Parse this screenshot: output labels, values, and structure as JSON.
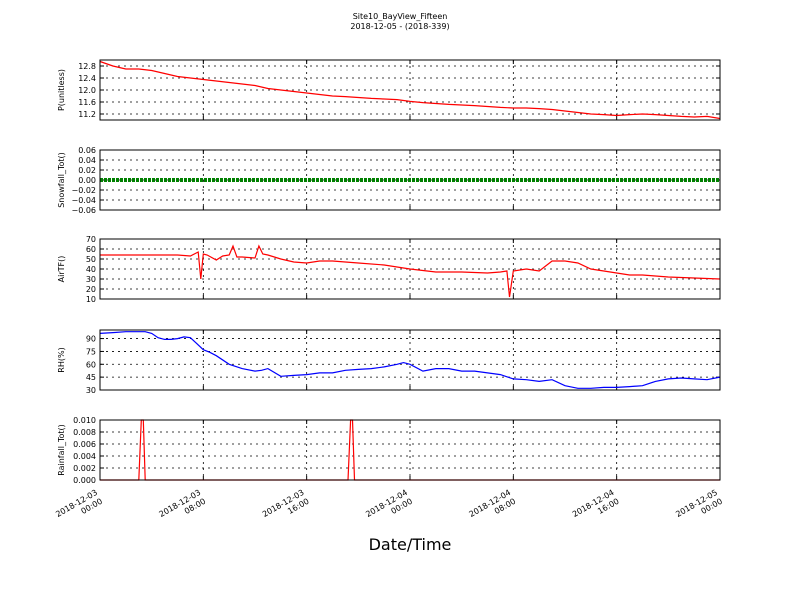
{
  "figure": {
    "title_line1": "Site10_BayView_Fifteen",
    "title_line2": "2018-12-05 - (2018-339)",
    "xlabel": "Date/Time"
  },
  "chart_data": [
    {
      "type": "line",
      "ylabel": "P(unitless)",
      "ylim": [
        11.0,
        13.0
      ],
      "yticks": [
        "11.2",
        "11.6",
        "12.0",
        "12.4",
        "12.8"
      ],
      "ytick_values": [
        11.2,
        11.6,
        12.0,
        12.4,
        12.8
      ],
      "x": [
        0,
        1,
        2,
        3,
        4,
        5,
        6,
        7,
        8,
        9,
        10,
        11,
        12,
        13,
        14,
        15,
        16,
        17,
        18,
        19,
        20,
        21,
        22,
        23,
        24,
        25,
        26,
        27,
        28,
        29,
        30,
        31,
        32,
        33,
        34,
        35,
        36,
        37,
        38,
        39,
        40,
        41,
        42,
        43,
        44,
        45,
        46,
        47,
        48
      ],
      "series": [
        {
          "color": "#ff0000",
          "values": [
            12.95,
            12.8,
            12.7,
            12.7,
            12.65,
            12.55,
            12.45,
            12.4,
            12.35,
            12.3,
            12.25,
            12.2,
            12.15,
            12.05,
            12.0,
            11.95,
            11.9,
            11.85,
            11.8,
            11.78,
            11.75,
            11.72,
            11.7,
            11.68,
            11.62,
            11.58,
            11.55,
            11.52,
            11.5,
            11.48,
            11.45,
            11.42,
            11.4,
            11.4,
            11.38,
            11.35,
            11.3,
            11.25,
            11.2,
            11.18,
            11.15,
            11.18,
            11.2,
            11.18,
            11.15,
            11.12,
            11.1,
            11.12,
            11.05
          ]
        }
      ]
    },
    {
      "type": "line",
      "ylabel": "Snowfall_Tot()",
      "ylim": [
        -0.06,
        0.06
      ],
      "yticks": [
        "−0.06",
        "−0.04",
        "−0.02",
        "0.00",
        "0.02",
        "0.04",
        "0.06"
      ],
      "ytick_values": [
        -0.06,
        -0.04,
        -0.02,
        0.0,
        0.02,
        0.04,
        0.06
      ],
      "x": [
        0,
        48
      ],
      "series": [
        {
          "color": "#008000",
          "values": [
            0.0,
            0.0
          ]
        }
      ]
    },
    {
      "type": "line",
      "ylabel": "AirTF()",
      "ylim": [
        10,
        70
      ],
      "yticks": [
        "10",
        "20",
        "30",
        "40",
        "50",
        "60",
        "70"
      ],
      "ytick_values": [
        10,
        20,
        30,
        40,
        50,
        60,
        70
      ],
      "x": [
        0,
        2,
        4,
        6,
        7,
        7.6,
        7.8,
        8,
        8.3,
        9,
        9.5,
        10,
        10.3,
        10.6,
        11,
        12,
        12.3,
        12.6,
        13,
        14,
        15,
        16,
        17,
        18,
        20,
        22,
        24,
        26,
        28,
        30,
        31,
        31.5,
        31.7,
        32,
        33,
        34,
        35,
        36,
        37,
        38,
        39,
        40,
        41,
        42,
        44,
        46,
        48
      ],
      "series": [
        {
          "color": "#ff0000",
          "values": [
            54,
            54,
            54,
            54,
            53,
            57,
            30,
            55,
            54,
            49,
            53,
            54,
            63,
            52,
            52,
            51,
            63,
            55,
            54,
            50,
            47,
            46,
            48,
            48,
            46,
            44,
            40,
            37,
            37,
            36,
            37,
            38,
            12,
            38,
            40,
            38,
            48,
            48,
            46,
            40,
            38,
            36,
            34,
            34,
            32,
            31,
            30
          ]
        }
      ]
    },
    {
      "type": "line",
      "ylabel": "RH(%)",
      "ylim": [
        30,
        100
      ],
      "yticks": [
        "30",
        "45",
        "60",
        "75",
        "90"
      ],
      "ytick_values": [
        30,
        45,
        60,
        75,
        90
      ],
      "x": [
        0,
        1,
        2,
        3,
        3.5,
        4,
        4.5,
        5,
        5.5,
        6,
        6.5,
        7,
        7.5,
        8,
        8.5,
        9,
        10,
        11,
        12,
        12.5,
        13,
        14,
        15,
        16,
        17,
        18,
        19,
        20,
        21,
        22,
        23,
        23.5,
        24,
        25,
        26,
        27,
        28,
        29,
        30,
        31,
        32,
        33,
        34,
        35,
        36,
        37,
        38,
        39,
        40,
        41,
        42,
        43,
        44,
        45,
        46,
        47,
        48
      ],
      "series": [
        {
          "color": "#0000ff",
          "values": [
            96,
            97,
            98,
            98,
            98,
            96,
            91,
            89,
            89,
            90,
            92,
            91,
            84,
            77,
            74,
            70,
            60,
            55,
            52,
            53,
            55,
            46,
            47,
            48,
            50,
            50,
            53,
            54,
            55,
            57,
            60,
            62,
            60,
            52,
            55,
            55,
            52,
            52,
            50,
            48,
            43,
            42,
            40,
            42,
            35,
            32,
            32,
            33,
            33,
            34,
            35,
            40,
            43,
            44,
            43,
            42,
            45
          ]
        }
      ]
    },
    {
      "type": "line",
      "ylabel": "Rainfall_Tot()",
      "ylim": [
        0.0,
        0.01
      ],
      "yticks": [
        "0.000",
        "0.002",
        "0.004",
        "0.006",
        "0.008",
        "0.010"
      ],
      "ytick_values": [
        0.0,
        0.002,
        0.004,
        0.006,
        0.008,
        0.01
      ],
      "x": [
        0,
        3.0,
        3.2,
        3.35,
        3.5,
        19.2,
        19.4,
        19.55,
        19.7,
        48
      ],
      "series": [
        {
          "color": "#ff0000",
          "values": [
            0,
            0,
            0.01,
            0.01,
            0,
            0,
            0.01,
            0.01,
            0,
            0
          ]
        }
      ]
    }
  ],
  "xaxis": {
    "xlim": [
      0,
      48
    ],
    "ticks": [
      {
        "x": 0,
        "line1": "2018-12-03",
        "line2": "00:00"
      },
      {
        "x": 8,
        "line1": "2018-12-03",
        "line2": "08:00"
      },
      {
        "x": 16,
        "line1": "2018-12-03",
        "line2": "16:00"
      },
      {
        "x": 24,
        "line1": "2018-12-04",
        "line2": "00:00"
      },
      {
        "x": 32,
        "line1": "2018-12-04",
        "line2": "08:00"
      },
      {
        "x": 40,
        "line1": "2018-12-04",
        "line2": "16:00"
      },
      {
        "x": 48,
        "line1": "2018-12-05",
        "line2": "00:00"
      }
    ]
  }
}
